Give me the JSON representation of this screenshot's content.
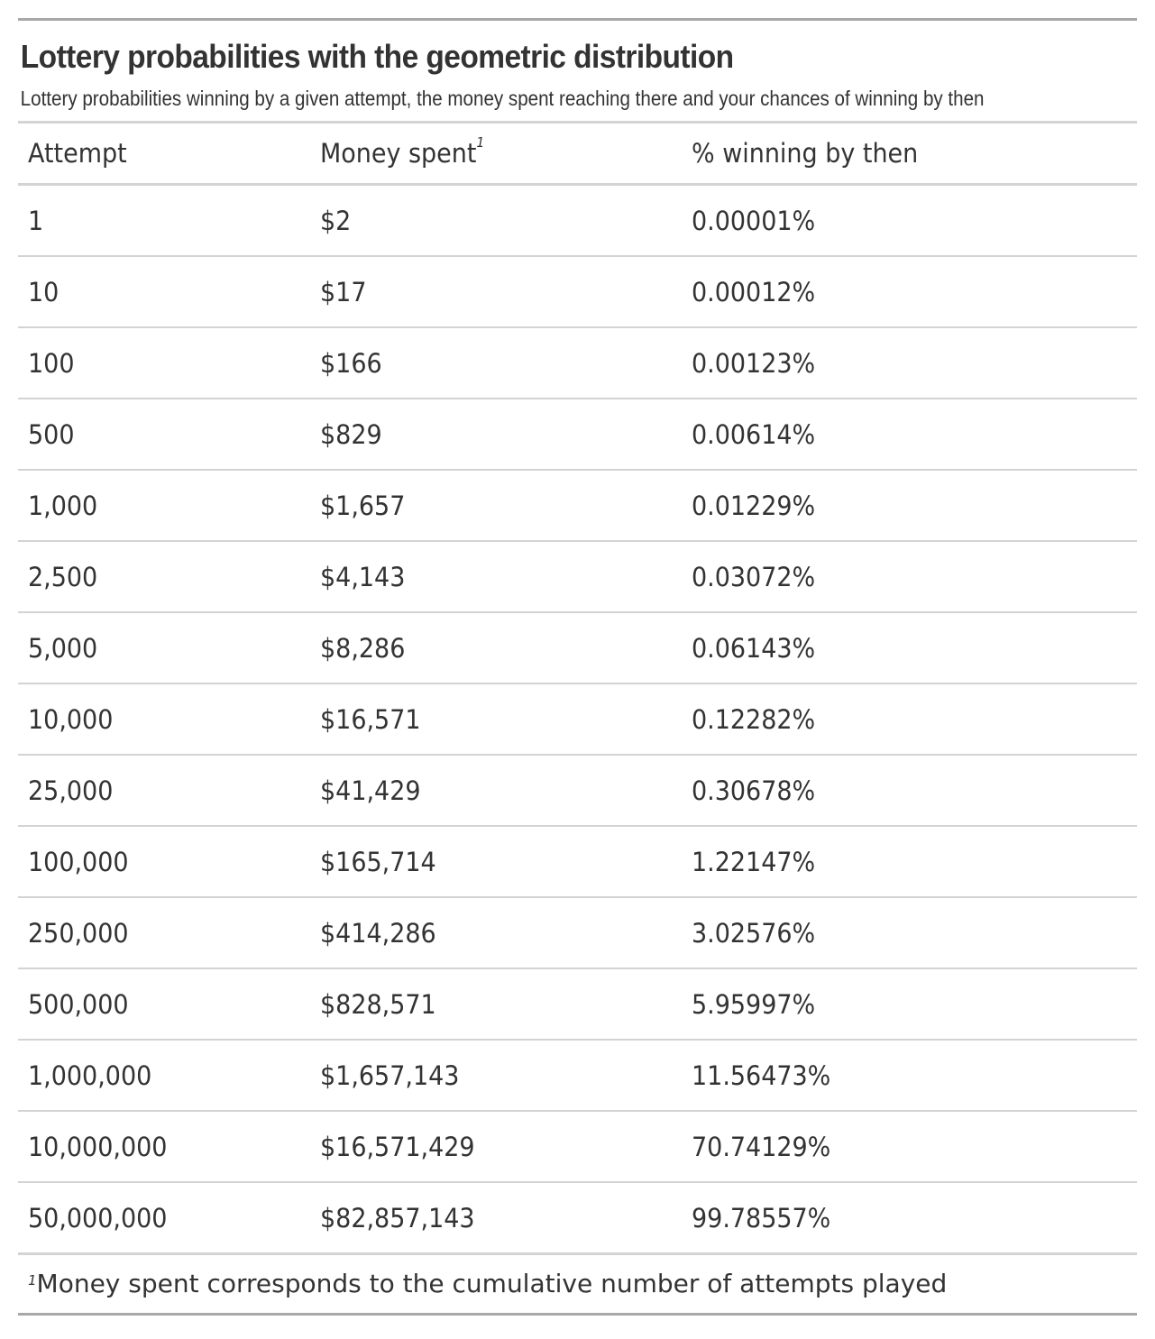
{
  "header": {
    "title": "Lottery probabilities with the geometric distribution",
    "subtitle": "Lottery probabilities winning by a given attempt, the money spent reaching there and your chances of winning by then"
  },
  "table": {
    "columns": [
      "Attempt",
      "Money spent",
      "% winning by then"
    ],
    "money_footnote_mark": "1",
    "rows": [
      [
        "1",
        "$2",
        "0.00001%"
      ],
      [
        "10",
        "$17",
        "0.00012%"
      ],
      [
        "100",
        "$166",
        "0.00123%"
      ],
      [
        "500",
        "$829",
        "0.00614%"
      ],
      [
        "1,000",
        "$1,657",
        "0.01229%"
      ],
      [
        "2,500",
        "$4,143",
        "0.03072%"
      ],
      [
        "5,000",
        "$8,286",
        "0.06143%"
      ],
      [
        "10,000",
        "$16,571",
        "0.12282%"
      ],
      [
        "25,000",
        "$41,429",
        "0.30678%"
      ],
      [
        "100,000",
        "$165,714",
        "1.22147%"
      ],
      [
        "250,000",
        "$414,286",
        "3.02576%"
      ],
      [
        "500,000",
        "$828,571",
        "5.95997%"
      ],
      [
        "1,000,000",
        "$1,657,143",
        "11.56473%"
      ],
      [
        "10,000,000",
        "$16,571,429",
        "70.74129%"
      ],
      [
        "50,000,000",
        "$82,857,143",
        "99.78557%"
      ]
    ]
  },
  "footnote": {
    "mark": "1",
    "text": "Money spent corresponds to the cumulative number of attempts played"
  }
}
